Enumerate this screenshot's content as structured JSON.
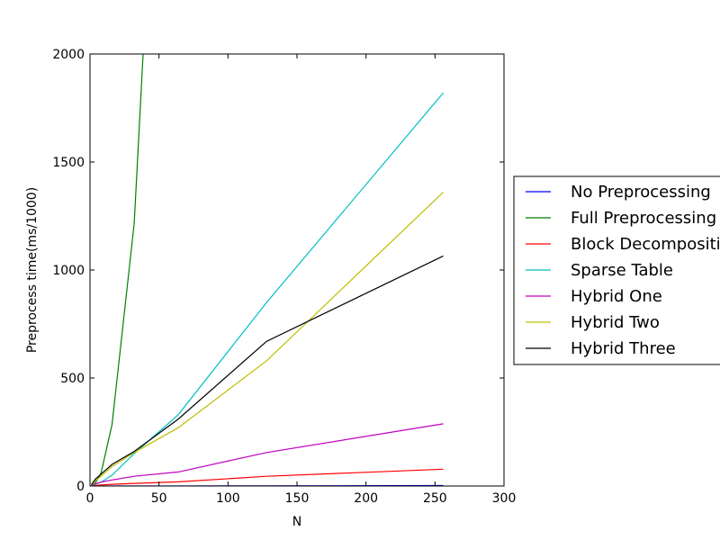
{
  "chart_data": {
    "type": "line",
    "title": "",
    "xlabel": "N",
    "ylabel": "Preprocess time(ms/1000)",
    "xlim": [
      0,
      300
    ],
    "ylim": [
      0,
      2000
    ],
    "xticks": [
      0,
      50,
      100,
      150,
      200,
      250,
      300
    ],
    "yticks": [
      0,
      500,
      1000,
      1500,
      2000
    ],
    "grid": false,
    "legend_position": "right, outside plot area",
    "series": [
      {
        "name": "No Preprocessing",
        "color": "#0000ff",
        "x": [
          1,
          2,
          4,
          8,
          16,
          32,
          64,
          128,
          256
        ],
        "y": [
          0,
          0,
          0,
          0,
          0,
          0,
          0,
          1,
          2
        ]
      },
      {
        "name": "Full Preprocessing",
        "color": "#008000",
        "x": [
          1,
          2,
          4,
          8,
          16,
          32,
          38.5
        ],
        "y": [
          1,
          4,
          15,
          60,
          285,
          1215,
          2000
        ]
      },
      {
        "name": "Block Decomposition",
        "color": "#ff0000",
        "x": [
          1,
          2,
          4,
          8,
          16,
          32,
          64,
          128,
          256
        ],
        "y": [
          0,
          1,
          2,
          5,
          8,
          12,
          19,
          45,
          78
        ]
      },
      {
        "name": "Sparse Table",
        "color": "#00bfbf",
        "x": [
          1,
          2,
          4,
          8,
          16,
          32,
          64,
          128,
          256
        ],
        "y": [
          0,
          3,
          8,
          18,
          50,
          150,
          330,
          850,
          1820
        ]
      },
      {
        "name": "Hybrid One",
        "color": "#bf00bf",
        "x": [
          1,
          2,
          4,
          8,
          16,
          32,
          64,
          128,
          256
        ],
        "y": [
          2,
          5,
          10,
          18,
          28,
          45,
          65,
          155,
          288
        ]
      },
      {
        "name": "Hybrid Two",
        "color": "#bfbf00",
        "x": [
          1,
          2,
          4,
          8,
          16,
          32,
          64,
          128,
          256
        ],
        "y": [
          3,
          10,
          25,
          45,
          90,
          155,
          270,
          580,
          1360
        ]
      },
      {
        "name": "Hybrid Three",
        "color": "#000000",
        "x": [
          1,
          2,
          4,
          8,
          16,
          32,
          64,
          128,
          256
        ],
        "y": [
          5,
          15,
          32,
          55,
          100,
          160,
          310,
          670,
          1065
        ]
      }
    ]
  }
}
